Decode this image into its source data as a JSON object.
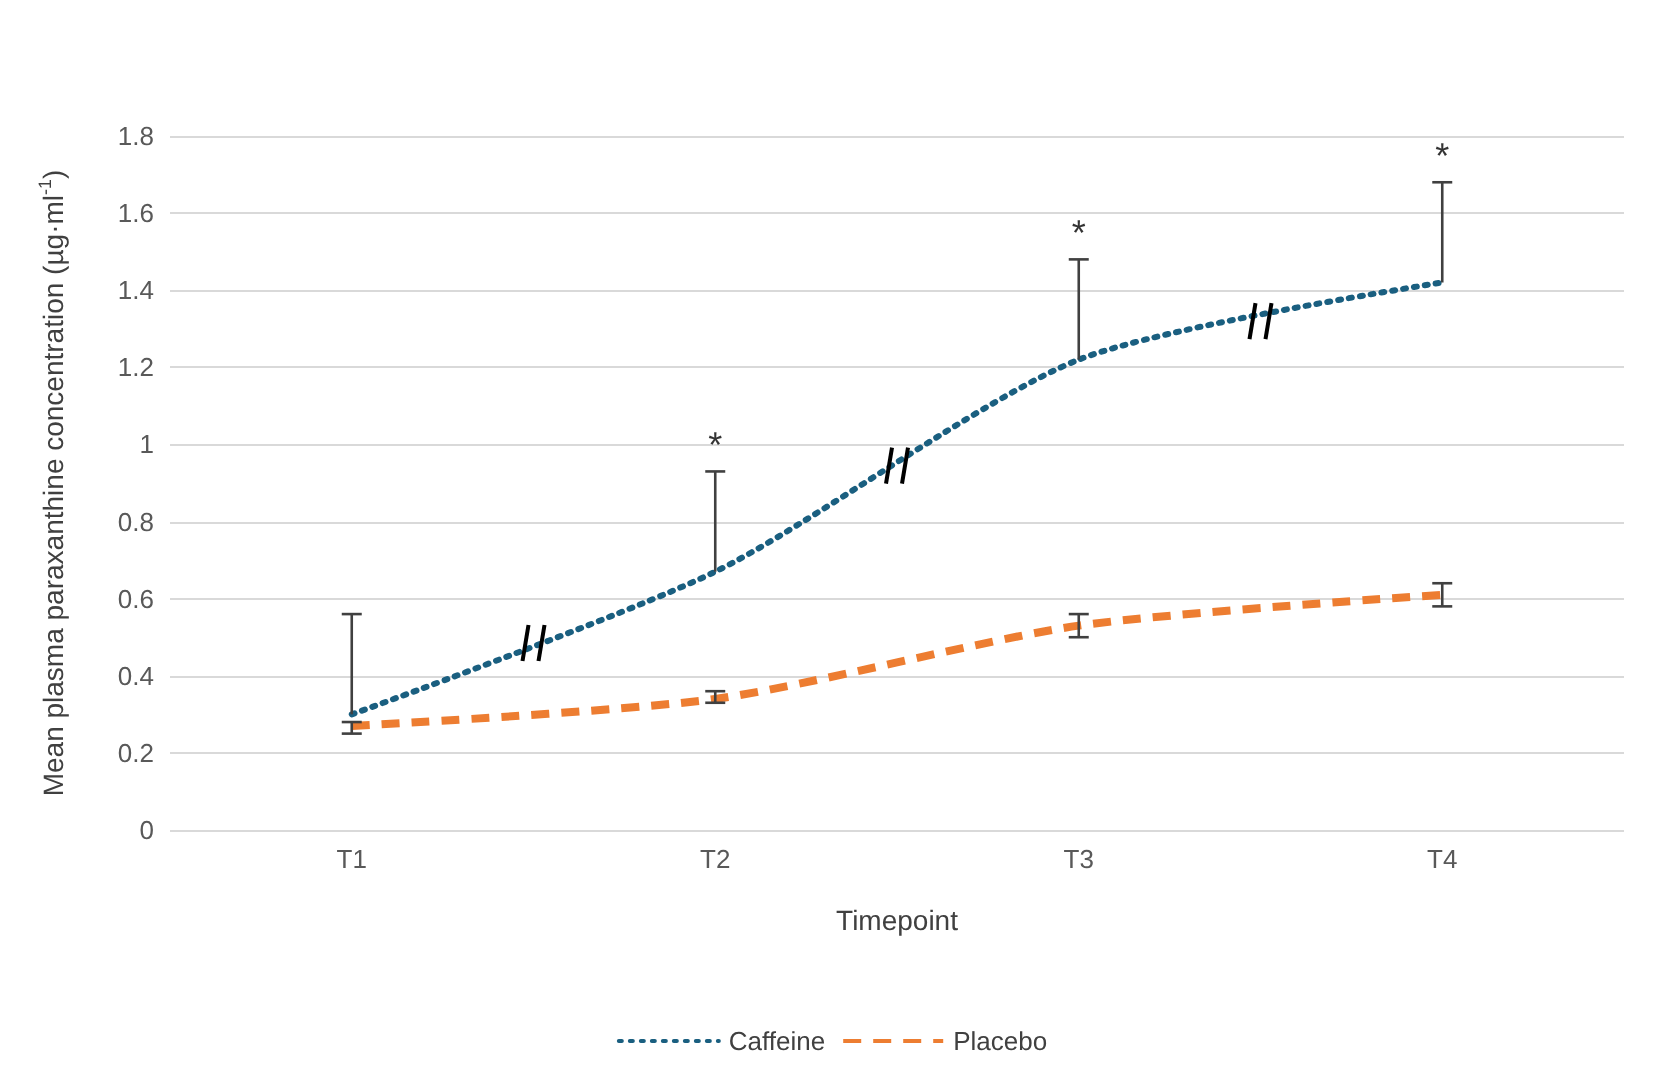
{
  "chart_data": {
    "type": "line",
    "xlabel": "Timepoint",
    "ylabel": "Mean plasma paraxanthine concentration (µg·ml$^{-1}$)",
    "categories": [
      "T1",
      "T2",
      "T3",
      "T4"
    ],
    "series": [
      {
        "name": "Caffeine",
        "color": "#1a5f80",
        "line_style": "dotted",
        "values": [
          0.3,
          0.67,
          1.22,
          1.42
        ],
        "errors": [
          [
            0.3,
            0.56
          ],
          [
            0.67,
            0.93
          ],
          [
            1.22,
            1.48
          ],
          [
            1.42,
            1.68
          ]
        ]
      },
      {
        "name": "Placebo",
        "color": "#ed7d31",
        "line_style": "dashed",
        "values": [
          0.27,
          0.34,
          0.53,
          0.61
        ],
        "errors": [
          [
            0.25,
            0.28
          ],
          [
            0.33,
            0.36
          ],
          [
            0.5,
            0.56
          ],
          [
            0.58,
            0.64
          ]
        ]
      }
    ],
    "ylim": [
      0,
      1.8
    ],
    "yticks": [
      0,
      0.2,
      0.4,
      0.6,
      0.8,
      1,
      1.2,
      1.4,
      1.6,
      1.8
    ],
    "grid": "y",
    "legend": "bottom",
    "marker": "none",
    "annotations": [
      {
        "text": "*",
        "x": "T2",
        "y": 0.93
      },
      {
        "text": "*",
        "x": "T3",
        "y": 1.48
      },
      {
        "text": "*",
        "x": "T4",
        "y": 1.68
      }
    ]
  }
}
